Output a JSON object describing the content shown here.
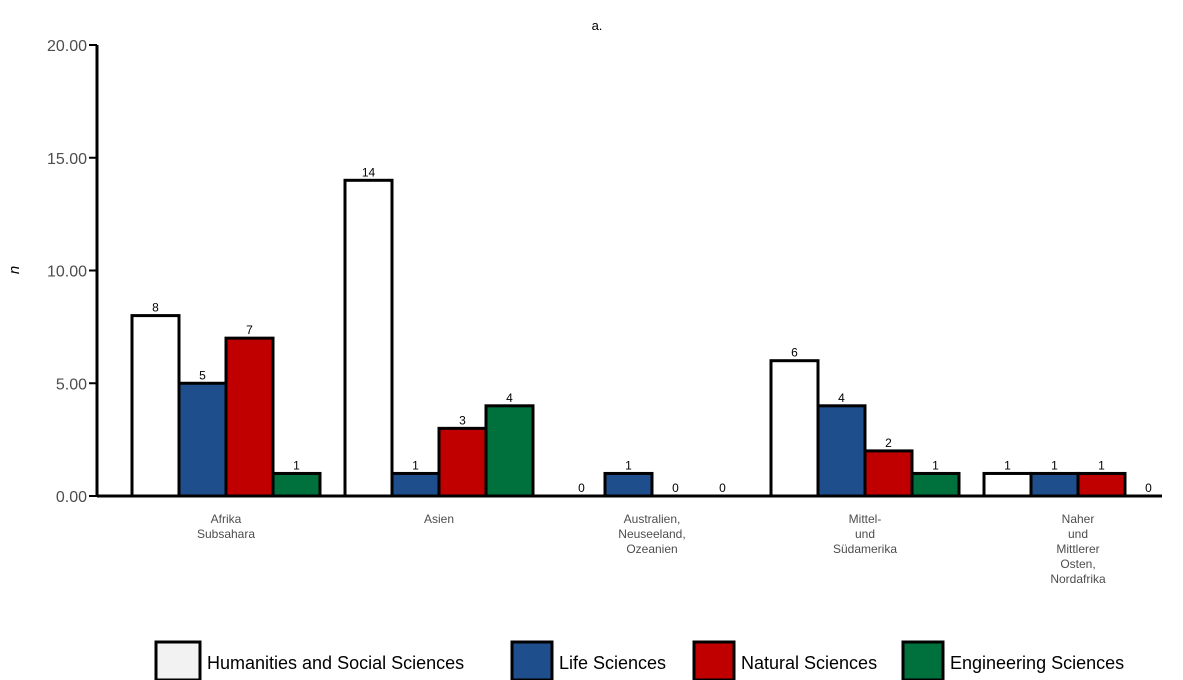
{
  "chart_data": {
    "type": "bar",
    "title": "a.",
    "ylabel": "n",
    "xlabel": "",
    "ylim": [
      0,
      20
    ],
    "yticks": [
      "0.00",
      "5.00",
      "10.00",
      "15.00",
      "20.00"
    ],
    "categories": [
      [
        "Afrika",
        "Subsahara"
      ],
      [
        "Asien"
      ],
      [
        "Australien,",
        "Neuseeland,",
        "Ozeanien"
      ],
      [
        "Mittel-",
        "und",
        "Südamerika"
      ],
      [
        "Naher",
        "und",
        "Mittlerer",
        "Osten,",
        "Nordafrika"
      ]
    ],
    "series": [
      {
        "name": "Humanities and Social Sciences",
        "color": "#ffffff",
        "values": [
          8,
          14,
          0,
          6,
          1
        ]
      },
      {
        "name": "Life Sciences",
        "color": "#1f4e8c",
        "values": [
          5,
          1,
          1,
          4,
          1
        ]
      },
      {
        "name": "Natural Sciences",
        "color": "#c00000",
        "values": [
          7,
          3,
          0,
          2,
          1
        ]
      },
      {
        "name": "Engineering Sciences",
        "color": "#00703c",
        "values": [
          1,
          4,
          0,
          1,
          0
        ]
      }
    ],
    "legend": {
      "position": "bottom",
      "swatch_colors": [
        "#f2f2f2",
        "#1f4e8c",
        "#c00000",
        "#00703c"
      ]
    },
    "grid": false
  }
}
